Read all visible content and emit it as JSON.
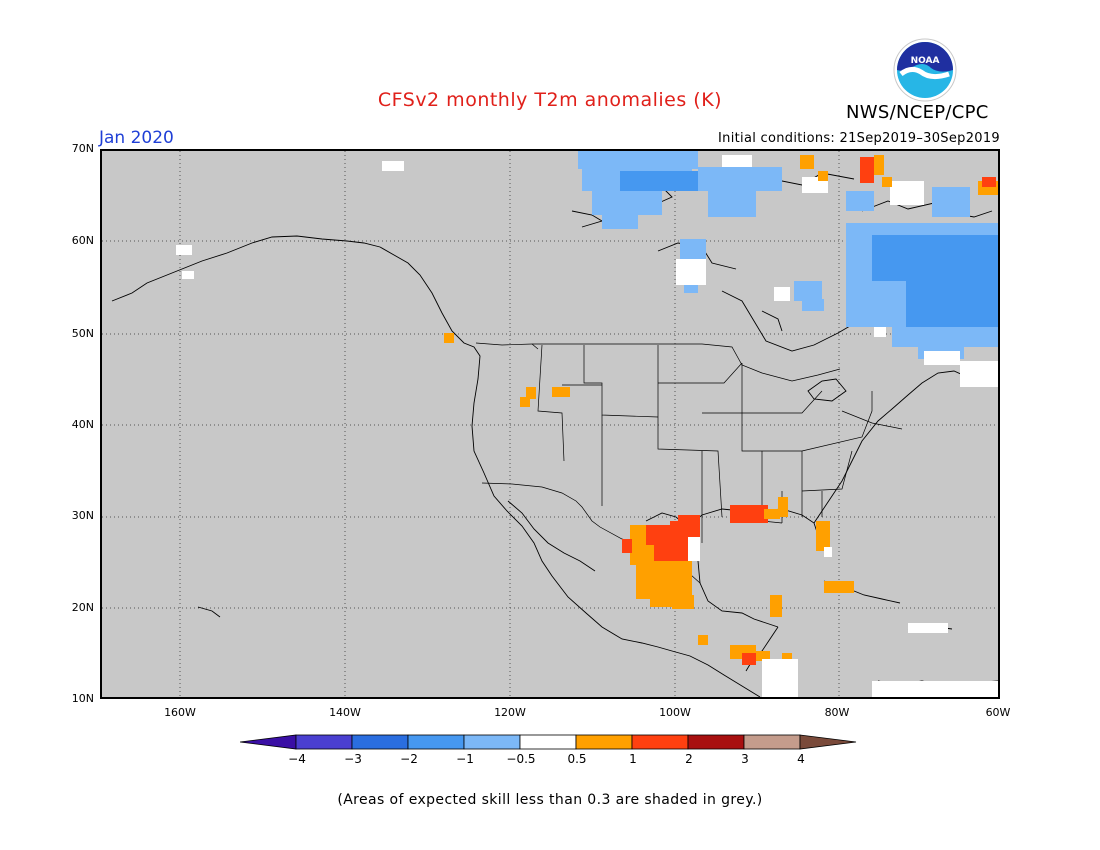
{
  "header": {
    "title": "CFSv2 monthly T2m anomalies (K)",
    "agency": "NWS/NCEP/CPC",
    "logo_text": "NOAA",
    "month": "Jan 2020",
    "initial_conditions": "Initial conditions: 21Sep2019–30Sep2019"
  },
  "colors": {
    "title": "#e0201a",
    "month": "#1f3fd6",
    "land": "#c8c8c8"
  },
  "map": {
    "lat_labels": [
      "70N",
      "60N",
      "50N",
      "40N",
      "30N",
      "20N",
      "10N"
    ],
    "lon_labels": [
      "160W",
      "140W",
      "120W",
      "100W",
      "80W",
      "60W"
    ]
  },
  "colorbar": {
    "labels": [
      "−4",
      "−3",
      "−2",
      "−1",
      "−0.5",
      "0.5",
      "1",
      "2",
      "3",
      "4"
    ],
    "colors": [
      "#3a0fa5",
      "#4a3fd0",
      "#2a6ee0",
      "#4698f0",
      "#7cb8f7",
      "#ffffff",
      "#ffa000",
      "#ff4010",
      "#a81010",
      "#c49c8c",
      "#7a4a3a"
    ]
  },
  "footer": {
    "note": "(Areas of expected skill less than 0.3 are shaded in grey.)"
  }
}
